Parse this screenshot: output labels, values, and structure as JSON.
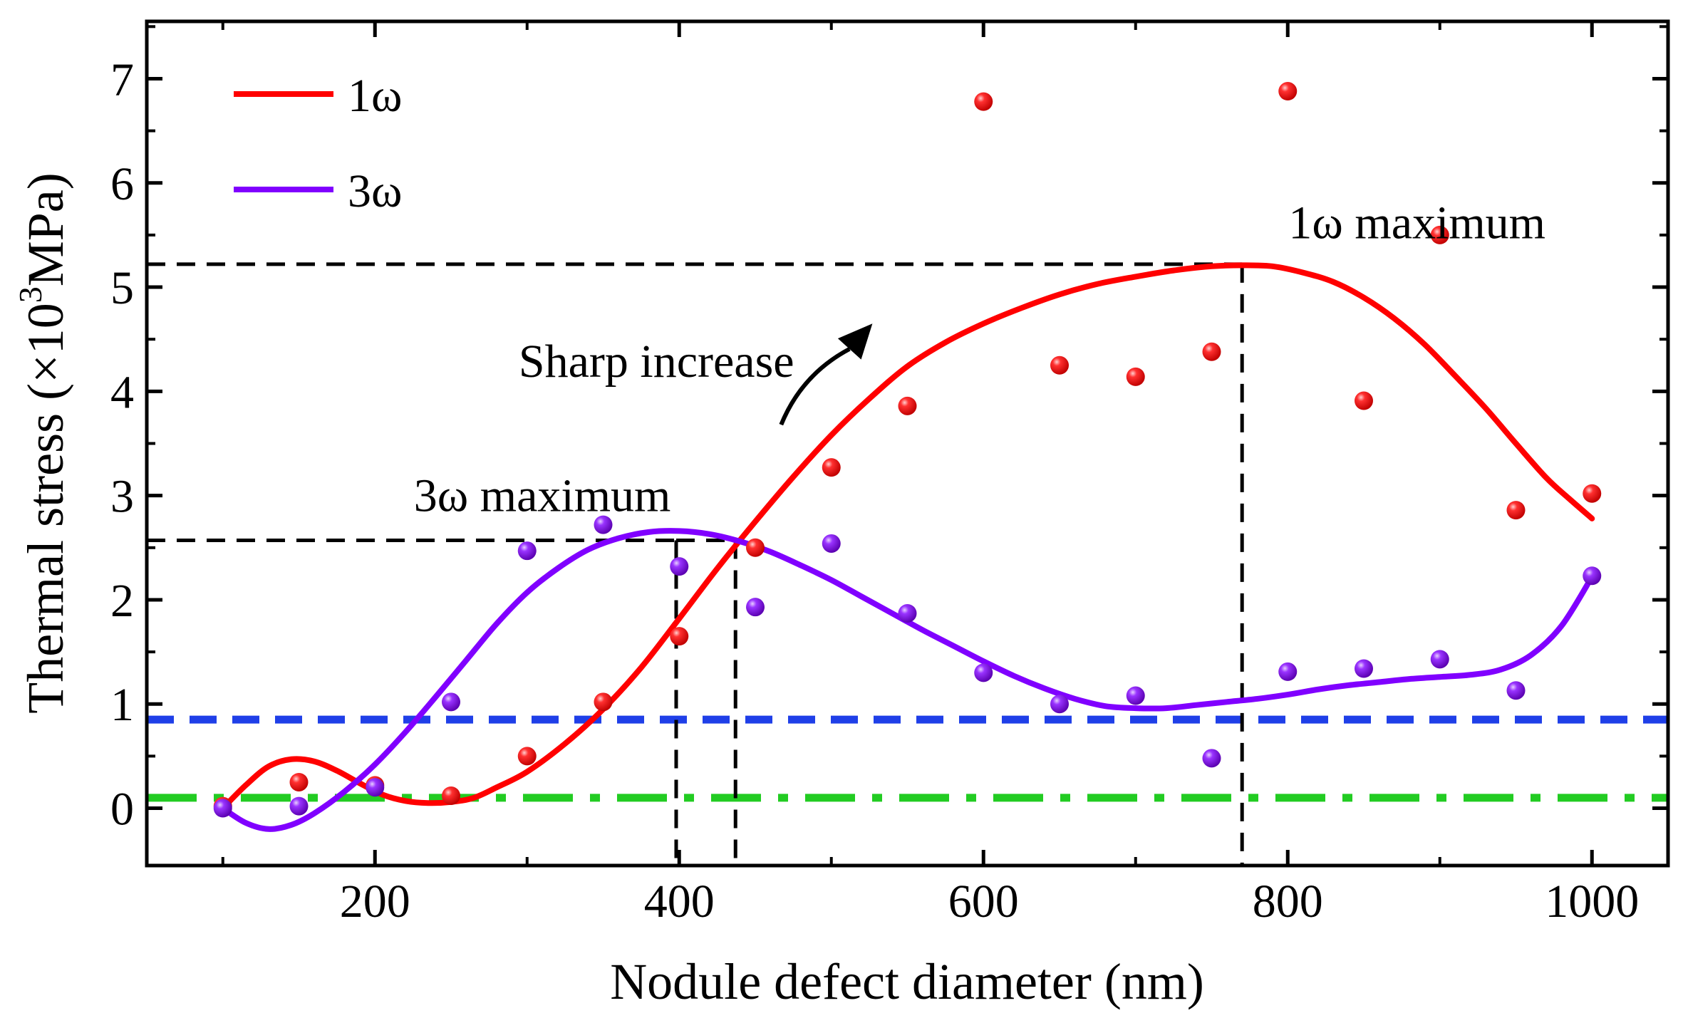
{
  "chart_data": {
    "type": "scatter",
    "title": "",
    "xlabel": "Nodule defect diameter (nm)",
    "ylabel": {
      "prefix": "Thermal stress (×10",
      "sup": "3",
      "suffix": "MPa)"
    },
    "xlim": [
      50,
      1050
    ],
    "ylim": [
      -0.55,
      7.55
    ],
    "xticks": [
      200,
      400,
      600,
      800,
      1000
    ],
    "yticks": [
      0,
      1,
      2,
      3,
      4,
      5,
      6,
      7
    ],
    "xticks_minor": [
      100,
      300,
      500,
      700,
      900
    ],
    "yticks_minor": [
      0.5,
      1.5,
      2.5,
      3.5,
      4.5,
      5.5,
      6.5,
      7.5
    ],
    "legend_position": "top-left",
    "series": [
      {
        "name": "1ω",
        "color": "#ff0000",
        "points": {
          "x": [
            100,
            150,
            200,
            250,
            300,
            350,
            400,
            450,
            500,
            550,
            600,
            650,
            700,
            750,
            800,
            850,
            900,
            950,
            1000
          ],
          "y": [
            0.02,
            0.25,
            0.22,
            0.12,
            0.5,
            1.02,
            1.65,
            2.5,
            3.27,
            3.86,
            6.78,
            4.25,
            4.14,
            4.38,
            6.88,
            3.91,
            5.5,
            2.86,
            3.02
          ]
        },
        "curve": {
          "x": [
            100,
            115,
            130,
            145,
            160,
            175,
            190,
            205,
            220,
            235,
            250,
            265,
            280,
            300,
            325,
            350,
            375,
            400,
            425,
            450,
            475,
            500,
            525,
            550,
            575,
            600,
            625,
            650,
            675,
            700,
            725,
            750,
            770,
            790,
            810,
            830,
            850,
            870,
            890,
            910,
            930,
            950,
            970,
            985,
            1000
          ],
          "y": [
            0.0,
            0.22,
            0.4,
            0.47,
            0.45,
            0.36,
            0.24,
            0.13,
            0.07,
            0.05,
            0.06,
            0.1,
            0.2,
            0.35,
            0.62,
            0.95,
            1.35,
            1.82,
            2.3,
            2.75,
            3.18,
            3.58,
            3.93,
            4.24,
            4.47,
            4.65,
            4.8,
            4.93,
            5.03,
            5.1,
            5.16,
            5.2,
            5.21,
            5.2,
            5.14,
            5.05,
            4.9,
            4.7,
            4.45,
            4.15,
            3.84,
            3.5,
            3.17,
            2.97,
            2.78
          ]
        }
      },
      {
        "name": "3ω",
        "color": "#8000ff",
        "points": {
          "x": [
            100,
            150,
            200,
            250,
            300,
            350,
            400,
            450,
            500,
            550,
            600,
            650,
            700,
            750,
            800,
            850,
            900,
            950,
            1000
          ],
          "y": [
            0.0,
            0.02,
            0.2,
            1.02,
            2.47,
            2.72,
            2.32,
            1.93,
            2.54,
            1.87,
            1.3,
            1.0,
            1.08,
            0.48,
            1.31,
            1.34,
            1.43,
            1.13,
            2.23
          ]
        },
        "curve": {
          "x": [
            100,
            115,
            130,
            145,
            160,
            180,
            200,
            220,
            240,
            260,
            280,
            300,
            320,
            340,
            360,
            380,
            400,
            420,
            440,
            460,
            480,
            500,
            520,
            540,
            560,
            580,
            600,
            620,
            640,
            660,
            680,
            700,
            720,
            740,
            760,
            780,
            800,
            820,
            840,
            860,
            880,
            900,
            920,
            940,
            960,
            980,
            1000
          ],
          "y": [
            0.0,
            -0.14,
            -0.2,
            -0.16,
            -0.05,
            0.16,
            0.42,
            0.73,
            1.07,
            1.42,
            1.77,
            2.07,
            2.3,
            2.48,
            2.59,
            2.65,
            2.66,
            2.63,
            2.56,
            2.46,
            2.33,
            2.19,
            2.03,
            1.87,
            1.71,
            1.56,
            1.41,
            1.27,
            1.15,
            1.05,
            0.98,
            0.96,
            0.96,
            0.99,
            1.02,
            1.05,
            1.09,
            1.14,
            1.18,
            1.21,
            1.24,
            1.26,
            1.28,
            1.33,
            1.47,
            1.75,
            2.22
          ]
        }
      }
    ],
    "reference_lines": [
      {
        "name": "blue dashed threshold",
        "y": 0.85,
        "color": "#1f3fe8",
        "style": "dash"
      },
      {
        "name": "green dash-dot threshold",
        "y": 0.1,
        "color": "#22cc22",
        "style": "dashdot"
      }
    ],
    "guide_lines": [
      {
        "name": "3ω maximum guide",
        "x_from": 50,
        "x_to": 398,
        "y": 2.57,
        "x_drop": 398
      },
      {
        "name": "crossover guide",
        "x_from": 398,
        "x_to": 437,
        "y": 2.57,
        "x_drop": 437
      },
      {
        "name": "1ω maximum guide",
        "x_from": 50,
        "x_to": 770,
        "y": 5.22,
        "x_drop": 770
      }
    ],
    "annotations": [
      {
        "id": "max1",
        "text": "1ω maximum",
        "x": 885,
        "y": 5.62
      },
      {
        "id": "max3",
        "text": "3ω maximum",
        "x": 310,
        "y": 3.0
      },
      {
        "id": "sharp",
        "text": "Sharp increase",
        "x": 385,
        "y": 4.29
      }
    ],
    "arrow": {
      "from": [
        467,
        3.68
      ],
      "to": [
        527,
        4.65
      ]
    }
  }
}
